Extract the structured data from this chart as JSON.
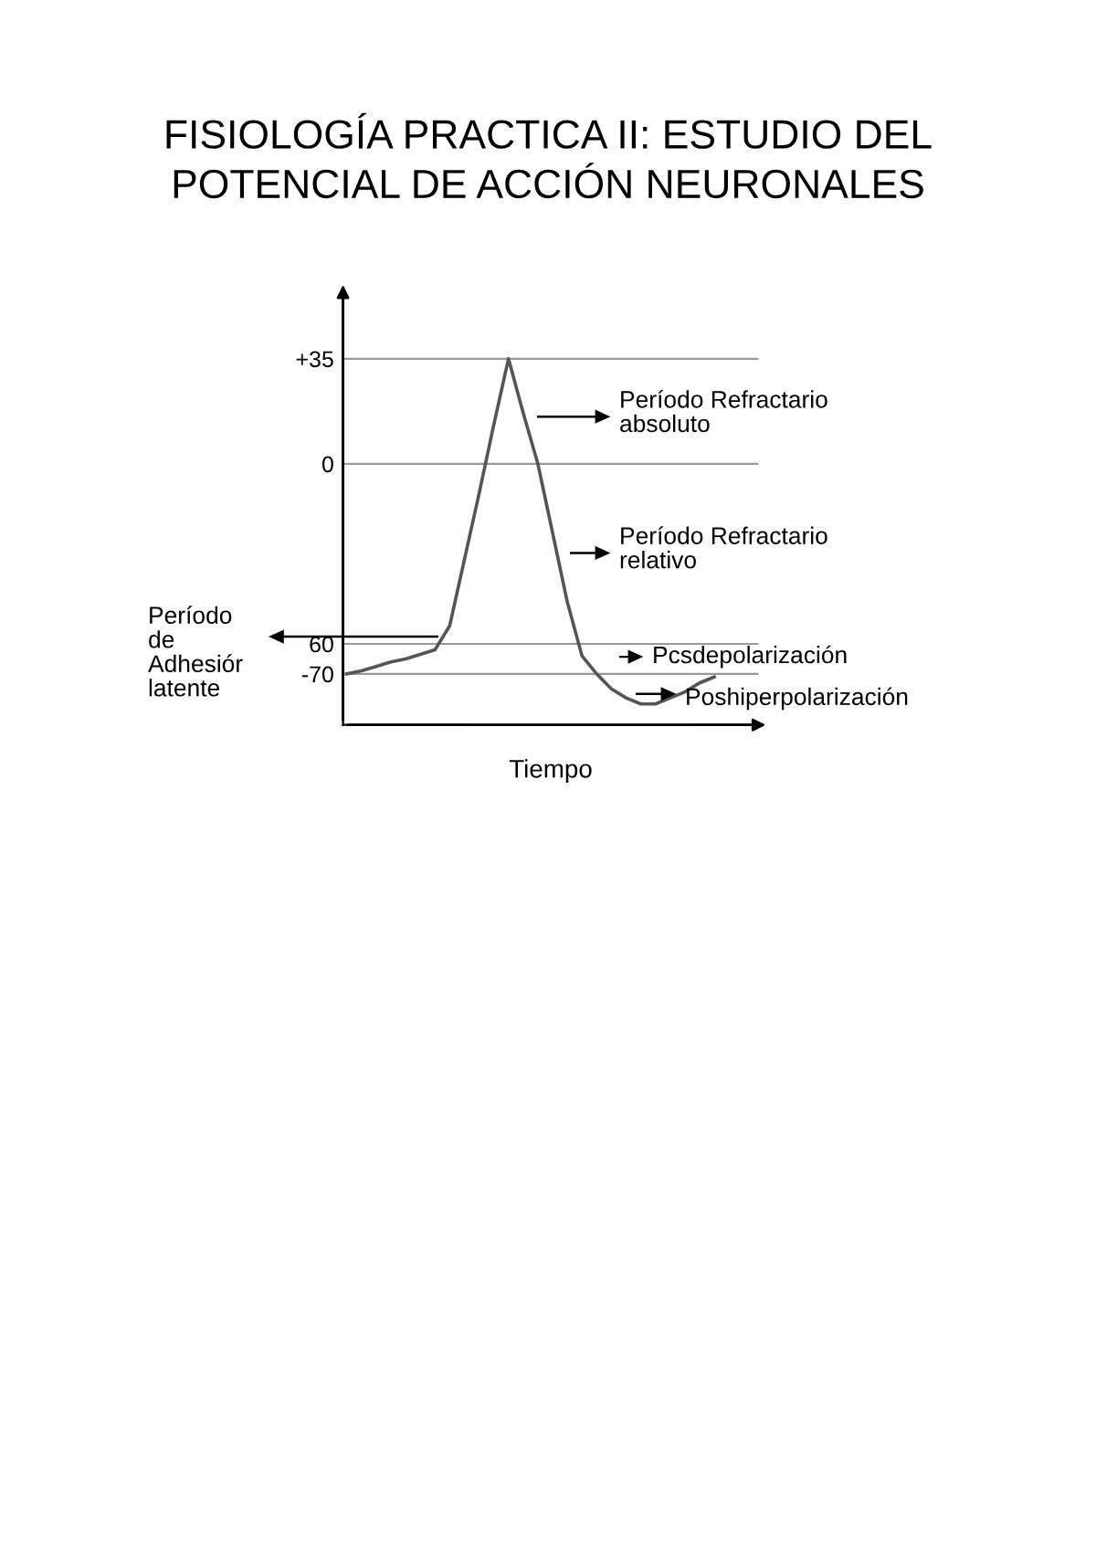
{
  "chart_data": {
    "type": "line",
    "title": "FISIOLOGÍA PRACTICA II: ESTUDIO DEL\nPOTENCIAL DE ACCIÓN NEURONALES",
    "xlabel": "Tiempo",
    "categories": [
      null,
      null,
      null,
      null,
      null,
      null,
      null,
      null,
      null,
      null,
      null,
      null,
      null,
      null,
      null,
      null,
      null,
      null,
      null,
      null,
      null,
      null,
      null,
      null,
      null,
      null
    ],
    "series": [
      {
        "color": "#555555",
        "values": [
          -70,
          -69,
          -67.5,
          -66,
          -65,
          -63.5,
          -62,
          -54,
          -32,
          -10,
          13,
          35,
          17,
          0,
          -23,
          -46,
          -64,
          -70,
          -75,
          -78,
          -80,
          -80,
          -78,
          -76,
          -73,
          -71
        ]
      }
    ],
    "ylim": [
      -87,
      57
    ],
    "yticks": [
      {
        "value": 35,
        "label": "+35"
      },
      0,
      {
        "value": -60,
        "label": "60"
      },
      -70
    ],
    "grid": "y",
    "marker": "none",
    "line_style": "solid",
    "annotations": [
      "Período Refractario\nabsoluto",
      "Período Refractario\nrelativo",
      "Período\nde\nAdhesiór\nlatente",
      "Pcsdepolarización",
      "Poshiperpolarización"
    ]
  }
}
